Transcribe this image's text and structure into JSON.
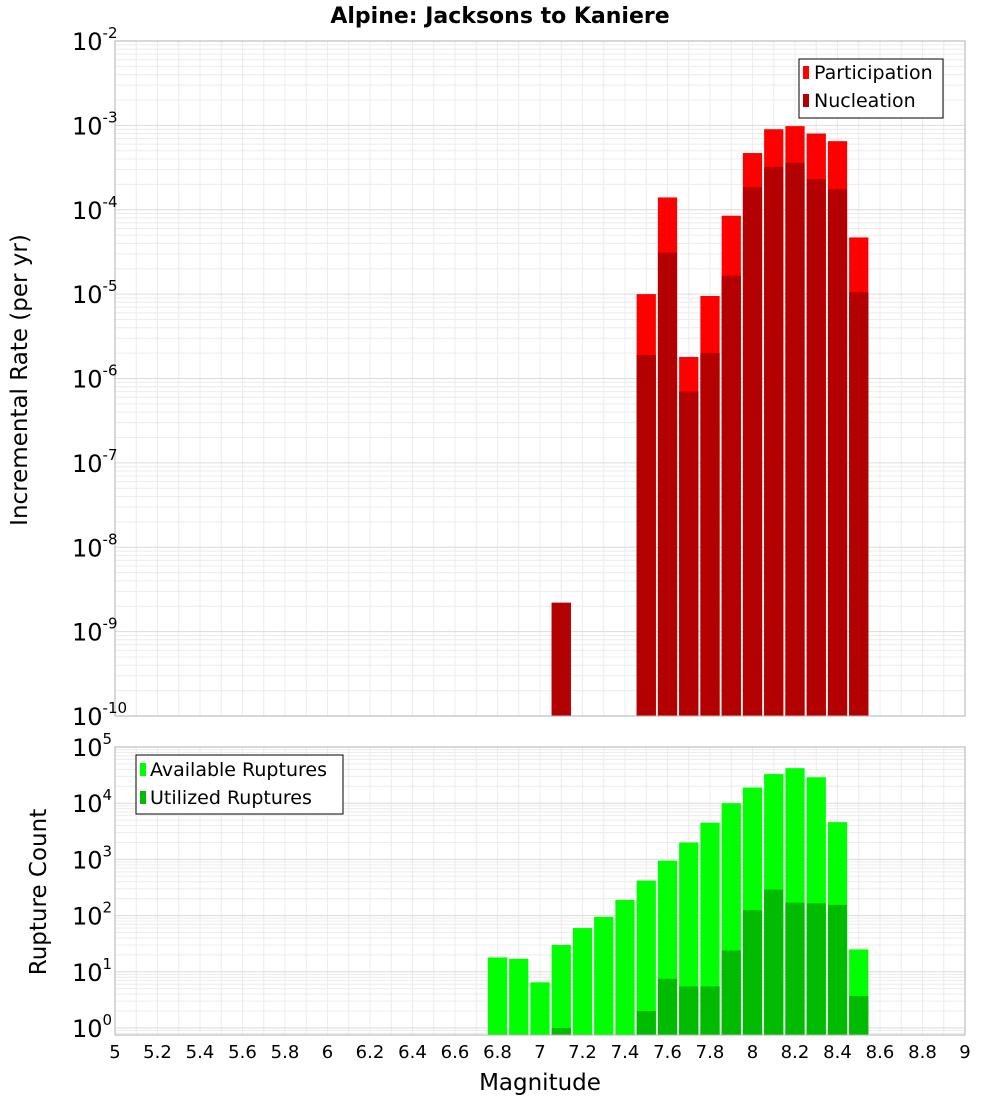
{
  "chart_data": [
    {
      "type": "bar",
      "title": "Alpine: Jacksons to Kaniere",
      "xlabel": "",
      "ylabel": "Incremental Rate (per yr)",
      "yscale": "log",
      "ylim": [
        1e-10,
        0.01
      ],
      "xlim": [
        5,
        9
      ],
      "bin_width": 0.1,
      "grid": true,
      "legend_position": "top-right",
      "series": [
        {
          "name": "Participation",
          "color": "#ff0000",
          "x": [
            7.1,
            7.5,
            7.6,
            7.7,
            7.8,
            7.9,
            8.0,
            8.1,
            8.2,
            8.3,
            8.4,
            8.5
          ],
          "values": [
            2.2e-09,
            1e-05,
            0.00014,
            1.8e-06,
            9.5e-06,
            8.5e-05,
            0.00047,
            0.0009,
            0.00098,
            0.0008,
            0.00065,
            4.7e-05
          ]
        },
        {
          "name": "Nucleation",
          "color": "#b30000",
          "x": [
            7.1,
            7.5,
            7.6,
            7.7,
            7.8,
            7.9,
            8.0,
            8.1,
            8.2,
            8.3,
            8.4,
            8.5
          ],
          "values": [
            2.2e-09,
            1.9e-06,
            3.1e-05,
            7e-07,
            2e-06,
            1.65e-05,
            0.000185,
            0.00032,
            0.00036,
            0.00023,
            0.000175,
            1.05e-05
          ]
        }
      ]
    },
    {
      "type": "bar",
      "title": "",
      "xlabel": "Magnitude",
      "ylabel": "Rupture Count",
      "yscale": "log",
      "ylim": [
        0.75,
        100000.0
      ],
      "xlim": [
        5,
        9
      ],
      "bin_width": 0.1,
      "grid": true,
      "legend_position": "top-left",
      "x_ticks": [
        "5",
        "5.2",
        "5.4",
        "5.6",
        "5.8",
        "6",
        "6.2",
        "6.4",
        "6.6",
        "6.8",
        "7",
        "7.2",
        "7.4",
        "7.6",
        "7.8",
        "8",
        "8.2",
        "8.4",
        "8.6",
        "8.8",
        "9"
      ],
      "series": [
        {
          "name": "Available Ruptures",
          "color": "#00ff00",
          "x": [
            6.8,
            6.9,
            7.0,
            7.1,
            7.2,
            7.3,
            7.4,
            7.5,
            7.6,
            7.7,
            7.8,
            7.9,
            8.0,
            8.1,
            8.2,
            8.3,
            8.4,
            8.5
          ],
          "values": [
            18,
            17,
            6.5,
            30,
            60,
            95,
            190,
            420,
            950,
            2000,
            4500,
            10000,
            19000,
            33000,
            42000,
            29000,
            4600,
            25
          ]
        },
        {
          "name": "Utilized Ruptures",
          "color": "#00bb00",
          "x": [
            7.1,
            7.5,
            7.6,
            7.7,
            7.8,
            7.9,
            8.0,
            8.1,
            8.2,
            8.3,
            8.4,
            8.5
          ],
          "values": [
            1,
            2,
            7.5,
            5.5,
            5.5,
            24,
            125,
            290,
            170,
            165,
            155,
            3.7
          ]
        }
      ]
    }
  ]
}
